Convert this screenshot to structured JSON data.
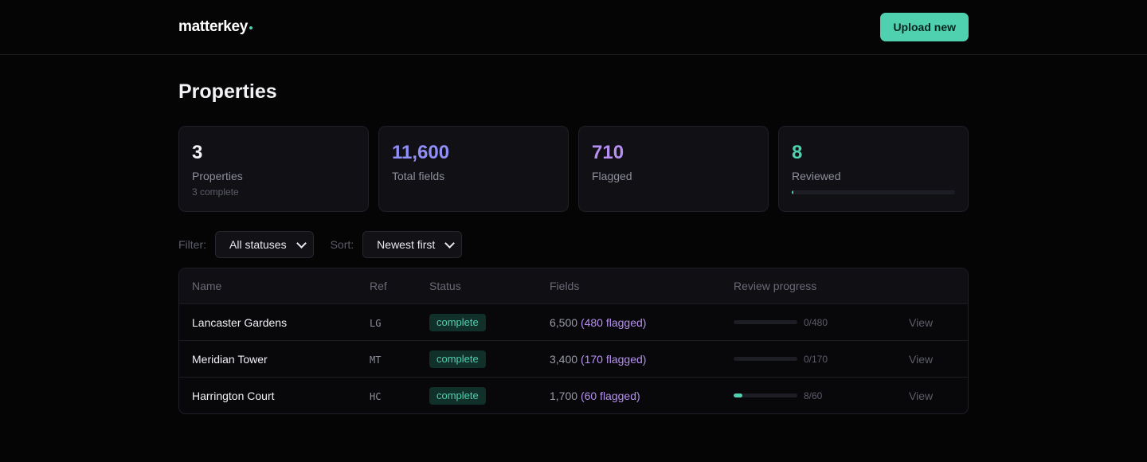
{
  "header": {
    "logo": "matterkey",
    "upload_label": "Upload new"
  },
  "page": {
    "title": "Properties"
  },
  "stats": [
    {
      "value": "3",
      "label": "Properties",
      "sub": "3 complete"
    },
    {
      "value": "11,600",
      "label": "Total fields"
    },
    {
      "value": "710",
      "label": "Flagged"
    },
    {
      "value": "8",
      "label": "Reviewed",
      "progress": 0.011
    }
  ],
  "filters": {
    "filter_label": "Filter:",
    "filter_value": "All statuses",
    "sort_label": "Sort:",
    "sort_value": "Newest first"
  },
  "table": {
    "columns": [
      "Name",
      "Ref",
      "Status",
      "Fields",
      "Review progress"
    ],
    "rows": [
      {
        "name": "Lancaster Gardens",
        "ref": "LG",
        "status": "complete",
        "fields": "6,500",
        "flagged": "(480 flagged)",
        "progress_text": "0/480",
        "progress": 0.0,
        "view": "View"
      },
      {
        "name": "Meridian Tower",
        "ref": "MT",
        "status": "complete",
        "fields": "3,400",
        "flagged": "(170 flagged)",
        "progress_text": "0/170",
        "progress": 0.0,
        "view": "View"
      },
      {
        "name": "Harrington Court",
        "ref": "HC",
        "status": "complete",
        "fields": "1,700",
        "flagged": "(60 flagged)",
        "progress_text": "8/60",
        "progress": 0.133,
        "view": "View"
      }
    ]
  },
  "colors": {
    "accent": "#4fd1b0",
    "blue": "#8f8ff7",
    "purple": "#b690f0",
    "background": "#050506"
  }
}
